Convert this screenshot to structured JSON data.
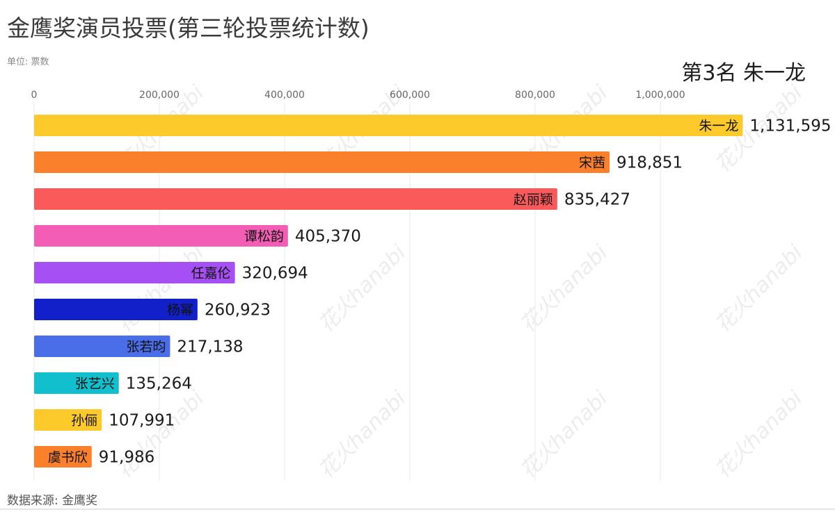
{
  "title": "金鹰奖演员投票(第三轮投票统计数)",
  "unit": "单位: 票数",
  "rank_label": "第3名 朱一龙",
  "source": "数据来源: 金鹰奖",
  "watermark": "花火hanabi",
  "chart_data": {
    "type": "bar",
    "orientation": "horizontal",
    "title": "金鹰奖演员投票(第三轮投票统计数)",
    "xlabel": "单位: 票数",
    "ylabel": "",
    "xlim": [
      0,
      1200000
    ],
    "ticks": [
      0,
      200000,
      400000,
      600000,
      800000,
      1000000
    ],
    "tick_labels": [
      "0",
      "200,000",
      "400,000",
      "600,000",
      "800,000",
      "1,000,000"
    ],
    "grid": true,
    "categories": [
      "朱一龙",
      "宋茜",
      "赵丽颖",
      "谭松韵",
      "任嘉伦",
      "杨幂",
      "张若昀",
      "张艺兴",
      "孙俪",
      "虞书欣"
    ],
    "values": [
      1131595,
      918851,
      835427,
      405370,
      320694,
      260923,
      217138,
      135264,
      107991,
      91986
    ],
    "value_labels": [
      "1,131,595",
      "918,851",
      "835,427",
      "405,370",
      "320,694",
      "260,923",
      "217,138",
      "135,264",
      "107,991",
      "91,986"
    ],
    "colors": [
      "#fcca2a",
      "#fb802c",
      "#fb5a5a",
      "#f45db5",
      "#a64ff2",
      "#1220c9",
      "#4a6ee8",
      "#12bfcd",
      "#fcca2a",
      "#fb802c"
    ]
  }
}
